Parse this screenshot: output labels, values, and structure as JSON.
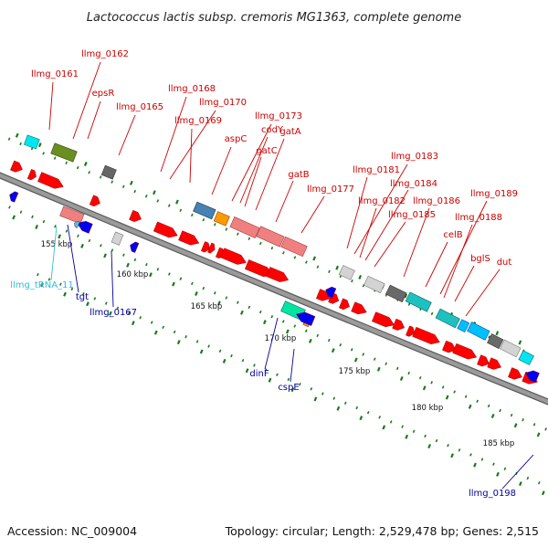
{
  "title": "Lactococcus lactis subsp. cremoris MG1363, complete genome",
  "footer": {
    "accession": "Accession: NC_009004",
    "summary": "Topology: circular; Length: 2,529,478 bp; Genes: 2,515"
  },
  "colors": {
    "forward_gene": "#ff0000",
    "reverse_gene": "#0000ee",
    "forward_label": "#cc0000",
    "reverse_label": "#000099",
    "rna_label": "#33bbdd",
    "tick": "#1a7a1a",
    "backbone": "#888888"
  },
  "kbp_labels": [
    "155 kbp",
    "160 kbp",
    "165 kbp",
    "170 kbp",
    "175 kbp",
    "180 kbp",
    "185 kbp"
  ],
  "forward_labels": [
    "llmg_0161",
    "llmg_0162",
    "epsR",
    "llmg_0165",
    "llmg_0168",
    "llmg_0170",
    "llmg_0169",
    "aspC",
    "llmg_0173",
    "codY",
    "gatC",
    "gatA",
    "gatB",
    "llmg_0177",
    "llmg_0181",
    "llmg_0183",
    "llmg_0184",
    "llmg_0182",
    "llmg_0186",
    "llmg_0189",
    "llmg_0185",
    "llmg_0188",
    "celB",
    "bglS",
    "dut"
  ],
  "reverse_labels": [
    "llmg_tRNA_11",
    "tgt",
    "llmg_0167",
    "dinF",
    "cspE",
    "llmg_0198"
  ]
}
